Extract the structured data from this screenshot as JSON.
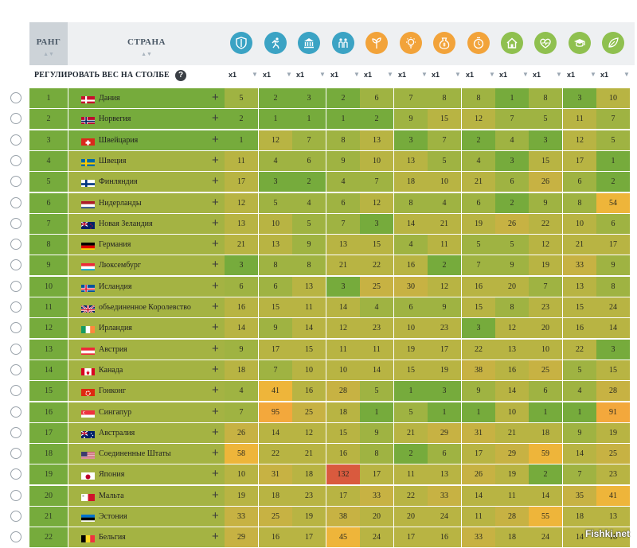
{
  "header": {
    "rank_label": "РАНГ",
    "country_label": "СТРАНА",
    "sort_glyph": "▲▼",
    "adjust_label": "РЕГУЛИРОВАТЬ ВЕС НА СТОЛБЕ",
    "help_glyph": "?"
  },
  "categories": [
    {
      "icon": "shield-icon",
      "color": "#3ba3c4"
    },
    {
      "icon": "running-person-icon",
      "color": "#3ba3c4"
    },
    {
      "icon": "government-building-icon",
      "color": "#3ba3c4"
    },
    {
      "icon": "people-group-icon",
      "color": "#3ba3c4"
    },
    {
      "icon": "growth-plant-icon",
      "color": "#f2a33a"
    },
    {
      "icon": "lightbulb-icon",
      "color": "#f2a33a"
    },
    {
      "icon": "money-bag-icon",
      "color": "#f2a33a"
    },
    {
      "icon": "coin-clock-icon",
      "color": "#f2a33a"
    },
    {
      "icon": "house-icon",
      "color": "#8fc04f"
    },
    {
      "icon": "heart-pulse-icon",
      "color": "#8fc04f"
    },
    {
      "icon": "graduation-cap-icon",
      "color": "#8fc04f"
    },
    {
      "icon": "leaf-icon",
      "color": "#8fc04f"
    }
  ],
  "weights": [
    "x1",
    "x1",
    "x1",
    "x1",
    "x1",
    "x1",
    "x1",
    "x1",
    "x1",
    "x1",
    "x1",
    "x1"
  ],
  "weight_arrow": "▼",
  "rows": [
    {
      "rank": "1",
      "flag": "dk",
      "country": "Дания",
      "values": [
        "5",
        "2",
        "3",
        "2",
        "6",
        "7",
        "8",
        "8",
        "1",
        "8",
        "3",
        "10"
      ]
    },
    {
      "rank": "2",
      "flag": "no",
      "country": "Норвегия",
      "values": [
        "2",
        "1",
        "1",
        "1",
        "2",
        "9",
        "15",
        "12",
        "7",
        "5",
        "11",
        "7"
      ]
    },
    {
      "rank": "3",
      "flag": "ch",
      "country": "Швейцария",
      "values": [
        "1",
        "12",
        "7",
        "8",
        "13",
        "3",
        "7",
        "2",
        "4",
        "3",
        "12",
        "5"
      ]
    },
    {
      "rank": "4",
      "flag": "se",
      "country": "Швеция",
      "values": [
        "11",
        "4",
        "6",
        "9",
        "10",
        "13",
        "5",
        "4",
        "3",
        "15",
        "17",
        "1"
      ]
    },
    {
      "rank": "5",
      "flag": "fi",
      "country": "Финляндия",
      "values": [
        "17",
        "3",
        "2",
        "4",
        "7",
        "18",
        "10",
        "21",
        "6",
        "26",
        "6",
        "2"
      ]
    },
    {
      "rank": "6",
      "flag": "nl",
      "country": "Нидерланды",
      "values": [
        "12",
        "5",
        "4",
        "6",
        "12",
        "8",
        "4",
        "6",
        "2",
        "9",
        "8",
        "54"
      ]
    },
    {
      "rank": "7",
      "flag": "nz",
      "country": "Новая Зеландия",
      "values": [
        "13",
        "10",
        "5",
        "7",
        "3",
        "14",
        "21",
        "19",
        "26",
        "22",
        "10",
        "6"
      ]
    },
    {
      "rank": "8",
      "flag": "de",
      "country": "Германия",
      "values": [
        "21",
        "13",
        "9",
        "13",
        "15",
        "4",
        "11",
        "5",
        "5",
        "12",
        "21",
        "17"
      ]
    },
    {
      "rank": "9",
      "flag": "lu",
      "country": "Люксембург",
      "values": [
        "3",
        "8",
        "8",
        "21",
        "22",
        "16",
        "2",
        "7",
        "9",
        "19",
        "33",
        "9"
      ]
    },
    {
      "rank": "10",
      "flag": "is",
      "country": "Исландия",
      "values": [
        "6",
        "6",
        "13",
        "3",
        "25",
        "30",
        "12",
        "16",
        "20",
        "7",
        "13",
        "8"
      ]
    },
    {
      "rank": "11",
      "flag": "gb",
      "country": "объединенное Королевство",
      "values": [
        "16",
        "15",
        "11",
        "14",
        "4",
        "6",
        "9",
        "15",
        "8",
        "23",
        "15",
        "24"
      ]
    },
    {
      "rank": "12",
      "flag": "ie",
      "country": "Ирландия",
      "values": [
        "14",
        "9",
        "14",
        "12",
        "23",
        "10",
        "23",
        "3",
        "12",
        "20",
        "16",
        "14"
      ]
    },
    {
      "rank": "13",
      "flag": "at",
      "country": "Австрия",
      "values": [
        "9",
        "17",
        "15",
        "11",
        "11",
        "19",
        "17",
        "22",
        "13",
        "10",
        "22",
        "3"
      ]
    },
    {
      "rank": "14",
      "flag": "ca",
      "country": "Канада",
      "values": [
        "18",
        "7",
        "10",
        "10",
        "14",
        "15",
        "19",
        "38",
        "16",
        "25",
        "5",
        "15"
      ]
    },
    {
      "rank": "15",
      "flag": "hk",
      "country": "Гонконг",
      "values": [
        "4",
        "41",
        "16",
        "28",
        "5",
        "1",
        "3",
        "9",
        "14",
        "6",
        "4",
        "28"
      ]
    },
    {
      "rank": "16",
      "flag": "sg",
      "country": "Сингапур",
      "values": [
        "7",
        "95",
        "25",
        "18",
        "1",
        "5",
        "1",
        "1",
        "10",
        "1",
        "1",
        "91"
      ]
    },
    {
      "rank": "17",
      "flag": "au",
      "country": "Австралия",
      "values": [
        "26",
        "14",
        "12",
        "15",
        "9",
        "21",
        "29",
        "31",
        "21",
        "18",
        "9",
        "19"
      ]
    },
    {
      "rank": "18",
      "flag": "us",
      "country": "Соединенные Штаты",
      "values": [
        "58",
        "22",
        "21",
        "16",
        "8",
        "2",
        "6",
        "17",
        "29",
        "59",
        "14",
        "25"
      ]
    },
    {
      "rank": "19",
      "flag": "jp",
      "country": "Япония",
      "values": [
        "10",
        "31",
        "18",
        "132",
        "17",
        "11",
        "13",
        "26",
        "19",
        "2",
        "7",
        "23"
      ]
    },
    {
      "rank": "20",
      "flag": "mt",
      "country": "Мальта",
      "values": [
        "19",
        "18",
        "23",
        "17",
        "33",
        "22",
        "33",
        "14",
        "11",
        "14",
        "35",
        "41"
      ]
    },
    {
      "rank": "21",
      "flag": "ee",
      "country": "Эстония",
      "values": [
        "33",
        "25",
        "19",
        "38",
        "20",
        "20",
        "24",
        "11",
        "28",
        "55",
        "18",
        "13"
      ]
    },
    {
      "rank": "22",
      "flag": "be",
      "country": "Бельгия",
      "values": [
        "29",
        "16",
        "17",
        "45",
        "24",
        "17",
        "16",
        "33",
        "18",
        "24",
        "14",
        "18"
      ]
    }
  ],
  "watermark": "Fishki.net"
}
